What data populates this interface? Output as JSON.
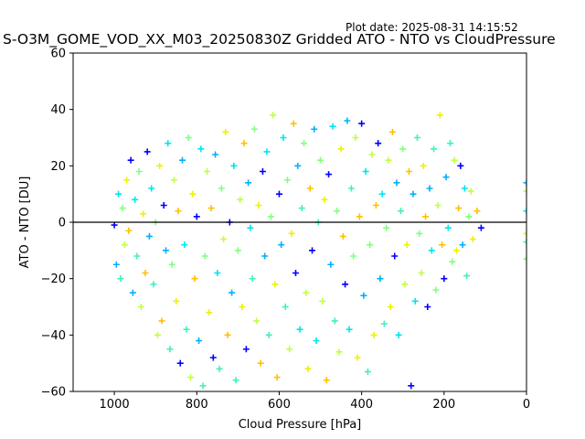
{
  "plot_date": "Plot date: 2025-08-31 14:15:52",
  "chart_data": {
    "type": "scatter",
    "title": "S-O3M_GOME_VOD_XX_M03_20250830Z Gridded ATO - NTO vs CloudPressure",
    "xlabel": "Cloud Pressure [hPa]",
    "ylabel": "ATO - NTO [DU]",
    "xlim": [
      1100,
      0
    ],
    "ylim": [
      -60,
      60
    ],
    "x_inverted": true,
    "xticks": [
      1000,
      800,
      600,
      400,
      200,
      0
    ],
    "yticks": [
      -60,
      -40,
      -20,
      0,
      20,
      40,
      60
    ],
    "xtick_labels": [
      "1000",
      "800",
      "600",
      "400",
      "200",
      "0"
    ],
    "ytick_labels": [
      "−60",
      "−40",
      "−20",
      "0",
      "20",
      "40",
      "60"
    ],
    "reference_line_y": 0,
    "grid": false,
    "marker": "plus",
    "colors": [
      "#0000ff",
      "#00b0ff",
      "#00e5ee",
      "#40f0c0",
      "#80ff80",
      "#c0ff40",
      "#f0f000",
      "#ffc000"
    ],
    "points": [
      [
        1000,
        -1
      ],
      [
        995,
        -15
      ],
      [
        990,
        10
      ],
      [
        985,
        -20
      ],
      [
        980,
        5
      ],
      [
        975,
        -8
      ],
      [
        970,
        15
      ],
      [
        965,
        -3
      ],
      [
        960,
        22
      ],
      [
        955,
        -25
      ],
      [
        950,
        8
      ],
      [
        945,
        -12
      ],
      [
        940,
        18
      ],
      [
        935,
        -30
      ],
      [
        930,
        3
      ],
      [
        925,
        -18
      ],
      [
        920,
        25
      ],
      [
        915,
        -5
      ],
      [
        910,
        12
      ],
      [
        905,
        -22
      ],
      [
        900,
        0
      ],
      [
        895,
        -40
      ],
      [
        890,
        20
      ],
      [
        885,
        -35
      ],
      [
        880,
        6
      ],
      [
        875,
        -10
      ],
      [
        870,
        28
      ],
      [
        865,
        -45
      ],
      [
        860,
        -15
      ],
      [
        855,
        15
      ],
      [
        850,
        -28
      ],
      [
        845,
        4
      ],
      [
        840,
        -50
      ],
      [
        835,
        22
      ],
      [
        830,
        -8
      ],
      [
        825,
        -38
      ],
      [
        820,
        30
      ],
      [
        815,
        -55
      ],
      [
        810,
        10
      ],
      [
        805,
        -20
      ],
      [
        800,
        2
      ],
      [
        795,
        -42
      ],
      [
        790,
        26
      ],
      [
        785,
        -58
      ],
      [
        780,
        -12
      ],
      [
        775,
        18
      ],
      [
        770,
        -32
      ],
      [
        765,
        5
      ],
      [
        760,
        -48
      ],
      [
        755,
        24
      ],
      [
        750,
        -18
      ],
      [
        745,
        -52
      ],
      [
        740,
        12
      ],
      [
        735,
        -6
      ],
      [
        730,
        32
      ],
      [
        725,
        -40
      ],
      [
        720,
        0
      ],
      [
        715,
        -25
      ],
      [
        710,
        20
      ],
      [
        705,
        -56
      ],
      [
        700,
        -10
      ],
      [
        695,
        8
      ],
      [
        690,
        -30
      ],
      [
        685,
        28
      ],
      [
        680,
        -45
      ],
      [
        675,
        14
      ],
      [
        670,
        -2
      ],
      [
        665,
        -20
      ],
      [
        660,
        33
      ],
      [
        655,
        -35
      ],
      [
        650,
        6
      ],
      [
        645,
        -50
      ],
      [
        640,
        18
      ],
      [
        635,
        -12
      ],
      [
        630,
        25
      ],
      [
        625,
        -40
      ],
      [
        620,
        2
      ],
      [
        615,
        38
      ],
      [
        610,
        -22
      ],
      [
        605,
        -55
      ],
      [
        600,
        10
      ],
      [
        595,
        -8
      ],
      [
        590,
        30
      ],
      [
        585,
        -30
      ],
      [
        580,
        15
      ],
      [
        575,
        -45
      ],
      [
        570,
        -4
      ],
      [
        565,
        35
      ],
      [
        560,
        -18
      ],
      [
        555,
        20
      ],
      [
        550,
        -38
      ],
      [
        545,
        5
      ],
      [
        540,
        28
      ],
      [
        535,
        -25
      ],
      [
        530,
        -52
      ],
      [
        525,
        12
      ],
      [
        520,
        -10
      ],
      [
        515,
        33
      ],
      [
        510,
        -42
      ],
      [
        505,
        0
      ],
      [
        500,
        22
      ],
      [
        495,
        -28
      ],
      [
        490,
        8
      ],
      [
        485,
        -56
      ],
      [
        480,
        17
      ],
      [
        475,
        -15
      ],
      [
        470,
        34
      ],
      [
        465,
        -35
      ],
      [
        460,
        4
      ],
      [
        455,
        -46
      ],
      [
        450,
        26
      ],
      [
        445,
        -5
      ],
      [
        440,
        -22
      ],
      [
        435,
        36
      ],
      [
        430,
        -38
      ],
      [
        425,
        12
      ],
      [
        420,
        -12
      ],
      [
        415,
        30
      ],
      [
        410,
        -48
      ],
      [
        405,
        2
      ],
      [
        400,
        35
      ],
      [
        395,
        -26
      ],
      [
        390,
        18
      ],
      [
        385,
        -53
      ],
      [
        380,
        -8
      ],
      [
        375,
        24
      ],
      [
        370,
        -40
      ],
      [
        365,
        6
      ],
      [
        360,
        28
      ],
      [
        355,
        -20
      ],
      [
        350,
        10
      ],
      [
        345,
        -36
      ],
      [
        340,
        -2
      ],
      [
        335,
        22
      ],
      [
        330,
        -30
      ],
      [
        325,
        32
      ],
      [
        320,
        -12
      ],
      [
        315,
        14
      ],
      [
        310,
        -40
      ],
      [
        305,
        4
      ],
      [
        300,
        26
      ],
      [
        295,
        -22
      ],
      [
        290,
        -8
      ],
      [
        285,
        18
      ],
      [
        280,
        -58
      ],
      [
        275,
        10
      ],
      [
        270,
        -28
      ],
      [
        265,
        30
      ],
      [
        260,
        -4
      ],
      [
        255,
        -18
      ],
      [
        250,
        20
      ],
      [
        245,
        2
      ],
      [
        240,
        -30
      ],
      [
        235,
        12
      ],
      [
        230,
        -10
      ],
      [
        225,
        26
      ],
      [
        220,
        -24
      ],
      [
        215,
        6
      ],
      [
        210,
        38
      ],
      [
        205,
        -8
      ],
      [
        200,
        -20
      ],
      [
        195,
        16
      ],
      [
        190,
        -2
      ],
      [
        185,
        28
      ],
      [
        180,
        -14
      ],
      [
        175,
        22
      ],
      [
        170,
        -10
      ],
      [
        165,
        5
      ],
      [
        160,
        20
      ],
      [
        155,
        -8
      ],
      [
        150,
        12
      ],
      [
        145,
        -19
      ],
      [
        140,
        2
      ],
      [
        135,
        11
      ],
      [
        130,
        -6
      ],
      [
        120,
        4
      ],
      [
        110,
        -2
      ],
      [
        0,
        14
      ],
      [
        0,
        4
      ],
      [
        0,
        -7
      ],
      [
        0,
        -13
      ],
      [
        0,
        11
      ],
      [
        0,
        -4
      ]
    ]
  }
}
